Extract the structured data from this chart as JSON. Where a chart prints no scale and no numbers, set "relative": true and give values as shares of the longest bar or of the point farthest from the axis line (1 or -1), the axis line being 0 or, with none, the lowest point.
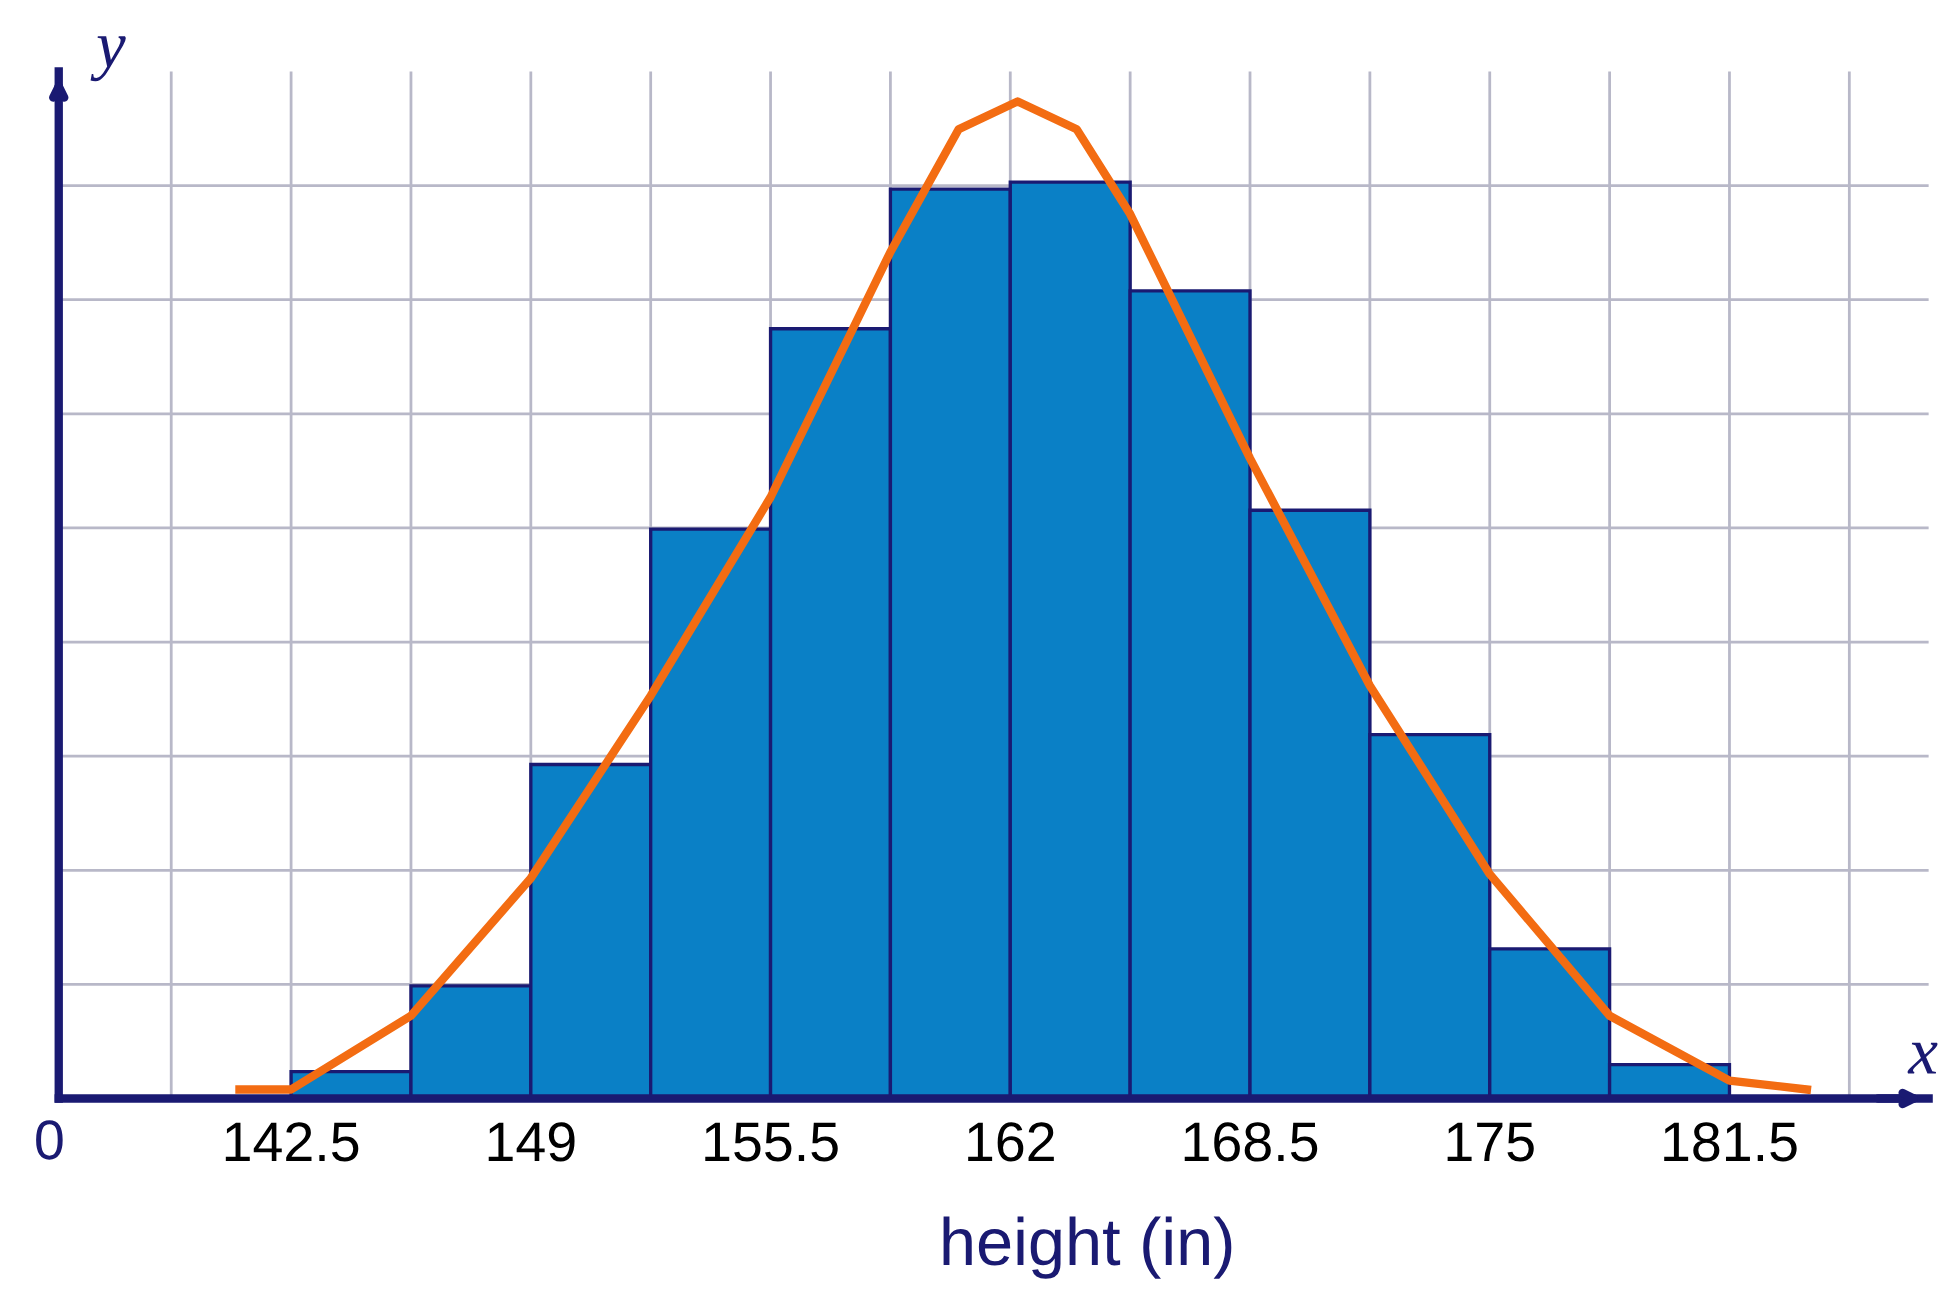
{
  "chart_data": {
    "type": "histogram",
    "relative": true,
    "xlabel": "height (in)",
    "annotations": [
      "0",
      "x",
      "y"
    ],
    "bins": [
      142.5,
      145.75,
      149,
      152.25,
      155.5,
      158.75,
      162,
      165.25,
      168.5,
      171.75,
      175,
      178.25,
      181.5
    ],
    "values": [
      0.027,
      0.113,
      0.335,
      0.571,
      0.772,
      0.912,
      0.919,
      0.81,
      0.59,
      0.365,
      0.15,
      0.034
    ],
    "color": "#0a80c6",
    "series": [
      {
        "type": "line",
        "color": "#f36c12",
        "x": [
          141.1,
          142.5,
          145.75,
          149,
          152.25,
          155.5,
          158.75,
          160.6,
          162.2,
          163.8,
          165.25,
          168.5,
          171.75,
          175,
          178.25,
          181.5,
          183.6
        ],
        "values": [
          0.009,
          0.009,
          0.083,
          0.221,
          0.404,
          0.603,
          0.849,
          0.972,
          1,
          0.972,
          0.887,
          0.642,
          0.414,
          0.225,
          0.083,
          0.018,
          0.009
        ]
      }
    ],
    "xlim": [
      136.2,
      186.9
    ],
    "xticks": [
      142.5,
      149,
      155.5,
      162,
      168.5,
      175,
      181.5
    ],
    "grid": true
  }
}
